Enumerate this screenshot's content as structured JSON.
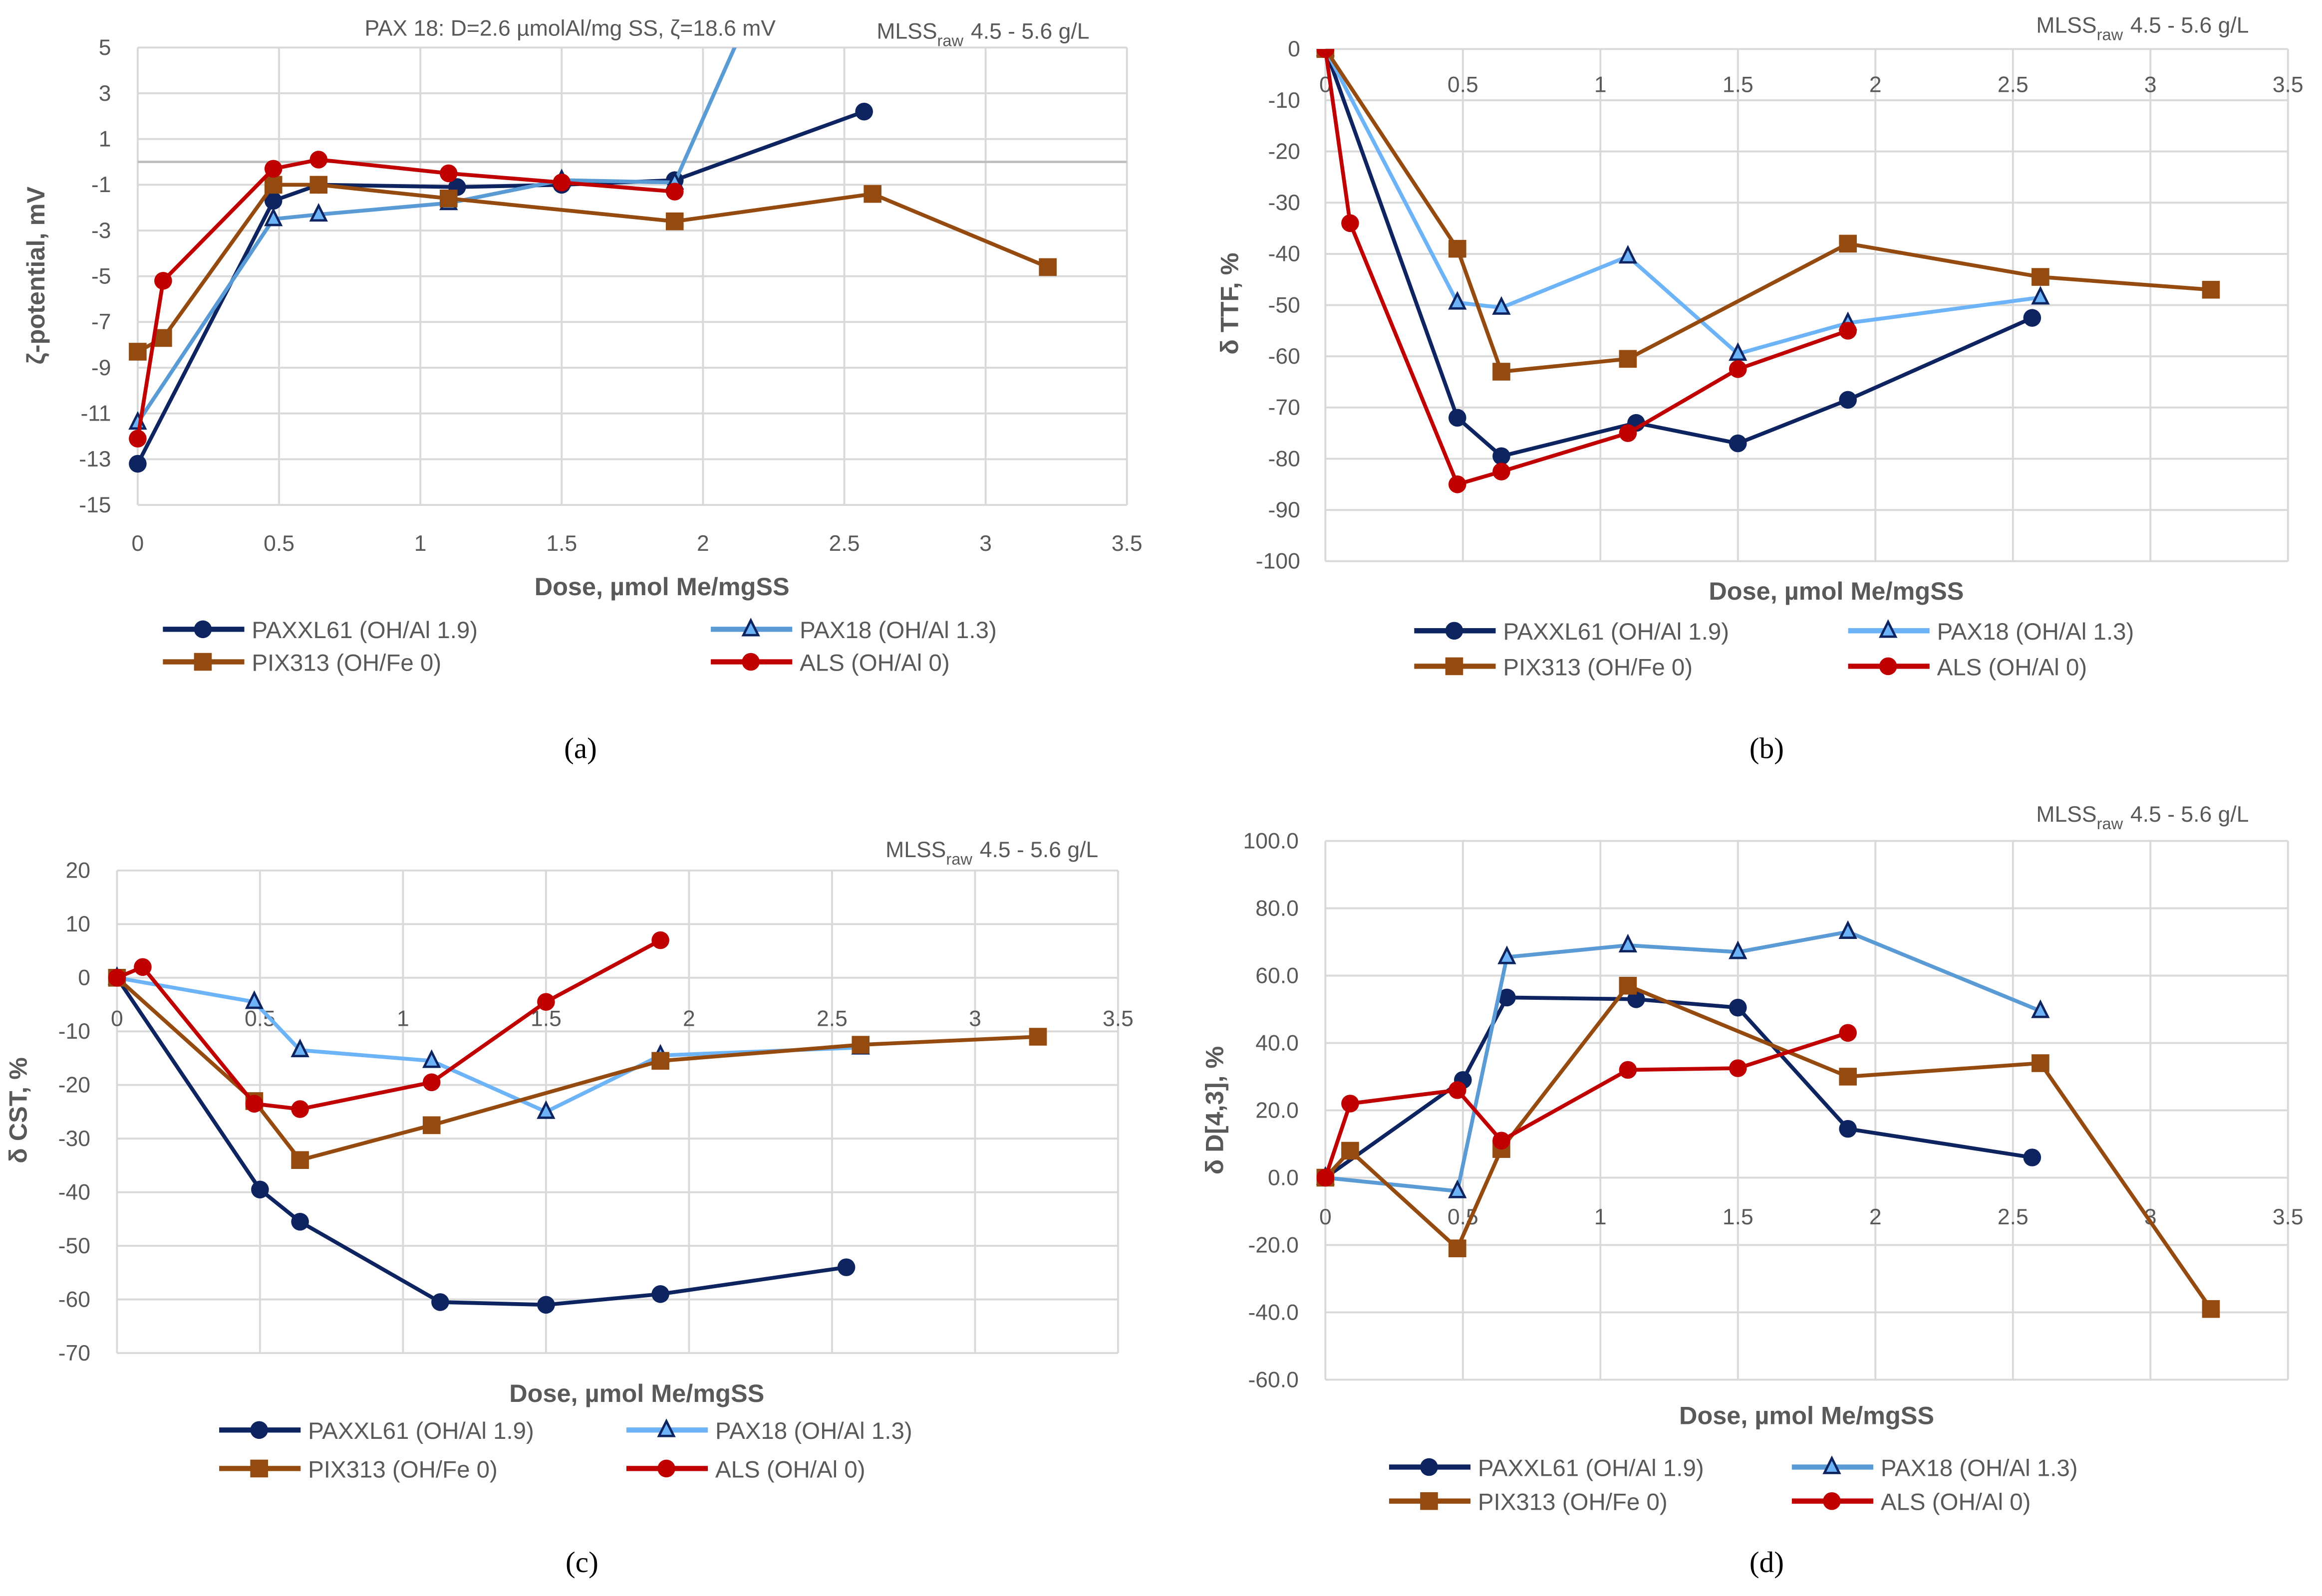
{
  "colors": {
    "PAXXL61": "#0d2461",
    "PAX18": "#5b9bd5",
    "PAX18_light": "#6cb4f7",
    "PIX313": "#954a0f",
    "ALS": "#c00000",
    "grid": "#d9d9d9",
    "zero": "#bfbfbf"
  },
  "legend": [
    "PAXXL61 (OH/Al 1.9)",
    "PAX18 (OH/Al 1.3)",
    "PIX313 (OH/Fe 0)",
    "ALS (OH/Al 0)"
  ],
  "chart_data": [
    {
      "type": "line",
      "caption": "(a)",
      "title": "PAX 18: D=2.6 µmolAl/mg SS, ζ=18.6 mV",
      "note": "MLSS",
      "note_sub": "raw",
      "note_range": "4.5 - 5.6 g/L",
      "xlabel": "Dose, µmol Me/mgSS",
      "ylabel": "ζ-potential, mV",
      "xlim": [
        0,
        3.5
      ],
      "ylim": [
        -15,
        5
      ],
      "xticks": [
        "0",
        "0.5",
        "1",
        "1.5",
        "2",
        "2.5",
        "3",
        "3.5"
      ],
      "yticks": [
        "5",
        "3",
        "1",
        "-1",
        "-3",
        "-5",
        "-7",
        "-9",
        "-11",
        "-13",
        "-15"
      ],
      "series": [
        {
          "name": "PAXXL61 (OH/Al 1.9)",
          "marker": "circle",
          "x": [
            0,
            0.48,
            0.64,
            1.13,
            1.5,
            1.9,
            2.57
          ],
          "y": [
            -13.2,
            -1.7,
            -1.0,
            -1.1,
            -1.0,
            -0.8,
            2.2
          ]
        },
        {
          "name": "PAX18 (OH/Al 1.3)",
          "marker": "triangle",
          "x": [
            0,
            0.48,
            0.64,
            1.1,
            1.5,
            1.9,
            2.6
          ],
          "y": [
            -11.4,
            -2.5,
            -2.3,
            -1.8,
            -0.8,
            -0.9,
            18.6
          ]
        },
        {
          "name": "PIX313 (OH/Fe 0)",
          "marker": "square",
          "x": [
            0,
            0.09,
            0.48,
            0.64,
            1.1,
            1.9,
            2.6,
            3.22
          ],
          "y": [
            -8.3,
            -7.7,
            -1.0,
            -1.0,
            -1.6,
            -2.6,
            -1.4,
            -4.6
          ]
        },
        {
          "name": "ALS (OH/Al 0)",
          "marker": "circle",
          "x": [
            0,
            0.09,
            0.48,
            0.64,
            1.1,
            1.5,
            1.9
          ],
          "y": [
            -12.1,
            -5.2,
            -0.3,
            0.1,
            -0.5,
            -0.9,
            -1.3
          ]
        }
      ]
    },
    {
      "type": "line",
      "caption": "(b)",
      "note": "MLSS",
      "note_sub": "raw",
      "note_range": "4.5 - 5.6 g/L",
      "xlabel": "Dose, µmol Me/mgSS",
      "ylabel": "δ TTF, %",
      "xlim": [
        0,
        3.5
      ],
      "ylim": [
        -100,
        0
      ],
      "xticks": [
        "0",
        "0.5",
        "1",
        "1.5",
        "2",
        "2.5",
        "3",
        "3.5"
      ],
      "yticks": [
        "0",
        "-10",
        "-20",
        "-30",
        "-40",
        "-50",
        "-60",
        "-70",
        "-80",
        "-90",
        "-100"
      ],
      "series": [
        {
          "name": "PAXXL61 (OH/Al 1.9)",
          "marker": "circle",
          "x": [
            0,
            0.48,
            0.64,
            1.13,
            1.5,
            1.9,
            2.57
          ],
          "y": [
            0,
            -72,
            -79.5,
            -73,
            -77,
            -68.5,
            -52.5
          ]
        },
        {
          "name": "PAX18 (OH/Al 1.3)",
          "marker": "triangle",
          "x": [
            0,
            0.48,
            0.64,
            1.1,
            1.5,
            1.9,
            2.6
          ],
          "y": [
            0,
            -49.5,
            -50.5,
            -40.5,
            -59.5,
            -53.5,
            -48.5
          ]
        },
        {
          "name": "PIX313 (OH/Fe 0)",
          "marker": "square",
          "x": [
            0,
            0.48,
            0.64,
            1.1,
            1.9,
            2.6,
            3.22
          ],
          "y": [
            0,
            -39,
            -63,
            -60.5,
            -38,
            -44.5,
            -47
          ]
        },
        {
          "name": "ALS (OH/Al 0)",
          "marker": "circle",
          "x": [
            0,
            0.09,
            0.48,
            0.64,
            1.1,
            1.5,
            1.9
          ],
          "y": [
            0,
            -34,
            -85,
            -82.5,
            -75,
            -62.5,
            -55
          ]
        }
      ]
    },
    {
      "type": "line",
      "caption": "(c)",
      "note": "MLSS",
      "note_sub": "raw",
      "note_range": "4.5 - 5.6 g/L",
      "xlabel": "Dose, µmol Me/mgSS",
      "ylabel": "δ CST, %",
      "xlim": [
        0,
        3.5
      ],
      "ylim": [
        -70,
        20
      ],
      "xticks": [
        "0",
        "0.5",
        "1",
        "1.5",
        "2",
        "2.5",
        "3",
        "3.5"
      ],
      "yticks": [
        "20",
        "10",
        "0",
        "-10",
        "-20",
        "-30",
        "-40",
        "-50",
        "-60",
        "-70"
      ],
      "series": [
        {
          "name": "PAXXL61 (OH/Al 1.9)",
          "marker": "circle",
          "x": [
            0,
            0.5,
            0.64,
            1.13,
            1.5,
            1.9,
            2.55
          ],
          "y": [
            0,
            -39.5,
            -45.5,
            -60.5,
            -61,
            -59,
            -54
          ]
        },
        {
          "name": "PAX18 (OH/Al 1.3)",
          "marker": "triangle",
          "x": [
            0,
            0.48,
            0.64,
            1.1,
            1.5,
            1.9,
            2.6
          ],
          "y": [
            0,
            -4.5,
            -13.5,
            -15.5,
            -25,
            -14.5,
            -13
          ]
        },
        {
          "name": "PIX313 (OH/Fe 0)",
          "marker": "square",
          "x": [
            0,
            0.48,
            0.64,
            1.1,
            1.9,
            2.6,
            3.22
          ],
          "y": [
            0,
            -23,
            -34,
            -27.5,
            -15.5,
            -12.5,
            -11
          ]
        },
        {
          "name": "ALS (OH/Al 0)",
          "marker": "circle",
          "x": [
            0,
            0.09,
            0.48,
            0.64,
            1.1,
            1.5,
            1.9
          ],
          "y": [
            0,
            2,
            -23.5,
            -24.5,
            -19.5,
            -4.5,
            7
          ]
        }
      ]
    },
    {
      "type": "line",
      "caption": "(d)",
      "note": "MLSS",
      "note_sub": "raw",
      "note_range": "4.5 - 5.6 g/L",
      "xlabel": "Dose, µmol Me/mgSS",
      "ylabel": "δ D[4,3], %",
      "xlim": [
        0,
        3.5
      ],
      "ylim": [
        -60,
        100
      ],
      "xticks": [
        "0",
        "0.5",
        "1",
        "1.5",
        "2",
        "2.5",
        "3",
        "3.5"
      ],
      "yticks": [
        "100.0",
        "80.0",
        "60.0",
        "40.0",
        "20.0",
        "0.0",
        "-20.0",
        "-40.0",
        "-60.0"
      ],
      "series": [
        {
          "name": "PAXXL61 (OH/Al 1.9)",
          "marker": "circle",
          "x": [
            0,
            0.5,
            0.66,
            1.13,
            1.5,
            1.9,
            2.57
          ],
          "y": [
            0,
            29,
            53.5,
            53,
            50.5,
            14.5,
            6
          ]
        },
        {
          "name": "PAX18 (OH/Al 1.3)",
          "marker": "triangle",
          "x": [
            0,
            0.48,
            0.66,
            1.1,
            1.5,
            1.9,
            2.6
          ],
          "y": [
            0,
            -4,
            65.5,
            69,
            67,
            73,
            49.5
          ]
        },
        {
          "name": "PIX313 (OH/Fe 0)",
          "marker": "square",
          "x": [
            0,
            0.09,
            0.48,
            0.64,
            1.1,
            1.9,
            2.6,
            3.22
          ],
          "y": [
            0,
            8,
            -21,
            8.5,
            57,
            30,
            34,
            -39
          ]
        },
        {
          "name": "ALS (OH/Al 0)",
          "marker": "circle",
          "x": [
            0,
            0.09,
            0.48,
            0.64,
            1.1,
            1.5,
            1.9
          ],
          "y": [
            0,
            22,
            26,
            11,
            32,
            32.5,
            43
          ]
        }
      ]
    }
  ]
}
